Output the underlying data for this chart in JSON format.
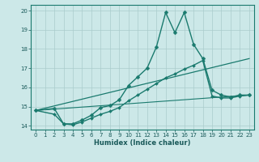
{
  "title": "",
  "xlabel": "Humidex (Indice chaleur)",
  "bg_color": "#cce8e8",
  "line_color": "#1a7a6e",
  "grid_color": "#aacccc",
  "xlim": [
    -0.5,
    23.5
  ],
  "ylim": [
    13.8,
    20.3
  ],
  "xticks": [
    0,
    1,
    2,
    3,
    4,
    5,
    6,
    7,
    8,
    9,
    10,
    11,
    12,
    13,
    14,
    15,
    16,
    17,
    18,
    19,
    20,
    21,
    22,
    23
  ],
  "yticks": [
    14,
    15,
    16,
    17,
    18,
    19,
    20
  ],
  "series": [
    {
      "x": [
        0,
        2,
        3,
        4,
        5,
        6,
        7,
        8,
        9,
        10,
        11,
        12,
        13,
        14,
        15,
        16,
        17,
        18,
        19,
        20,
        21,
        22,
        23
      ],
      "y": [
        14.8,
        14.9,
        14.1,
        14.1,
        14.3,
        14.55,
        14.95,
        15.05,
        15.35,
        16.1,
        16.55,
        17.0,
        18.1,
        19.9,
        18.85,
        19.9,
        18.25,
        17.5,
        15.85,
        15.6,
        15.5,
        15.6,
        15.6
      ],
      "marker": true,
      "linewidth": 1.0,
      "markersize": 2.5
    },
    {
      "x": [
        0,
        2,
        3,
        4,
        5,
        6,
        7,
        8,
        9,
        10,
        11,
        12,
        13,
        14,
        15,
        16,
        17,
        18,
        19,
        20,
        21,
        22,
        23
      ],
      "y": [
        14.8,
        14.6,
        14.1,
        14.05,
        14.2,
        14.4,
        14.6,
        14.75,
        14.95,
        15.3,
        15.6,
        15.9,
        16.2,
        16.5,
        16.7,
        16.95,
        17.15,
        17.4,
        15.55,
        15.45,
        15.45,
        15.55,
        15.6
      ],
      "marker": true,
      "linewidth": 1.0,
      "markersize": 2.0
    },
    {
      "x": [
        0,
        23
      ],
      "y": [
        14.8,
        17.5
      ],
      "marker": false,
      "linewidth": 0.9,
      "markersize": 0
    },
    {
      "x": [
        0,
        23
      ],
      "y": [
        14.8,
        15.6
      ],
      "marker": false,
      "linewidth": 0.8,
      "markersize": 0
    }
  ]
}
